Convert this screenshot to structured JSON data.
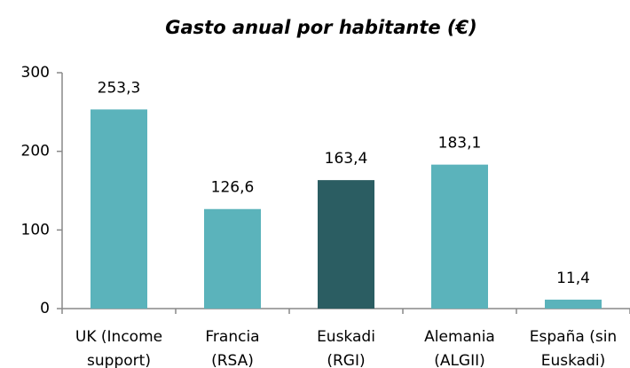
{
  "chart_data": {
    "type": "bar",
    "title": "Gasto anual por habitante (€)",
    "categories": [
      "UK (Income\nsupport)",
      "Francia\n(RSA)",
      "Euskadi\n(RGI)",
      "Alemania\n(ALGII)",
      "España (sin\nEuskadi)"
    ],
    "values": [
      253.3,
      126.6,
      163.4,
      183.1,
      11.4
    ],
    "value_labels": [
      "253,3",
      "126,6",
      "163,4",
      "183,1",
      "11,4"
    ],
    "colors": [
      "#5bb3bb",
      "#5bb3bb",
      "#2b5d62",
      "#5bb3bb",
      "#5bb3bb"
    ],
    "ylim": [
      0,
      300
    ],
    "yticks": [
      0,
      100,
      200,
      300
    ],
    "grid": false
  }
}
